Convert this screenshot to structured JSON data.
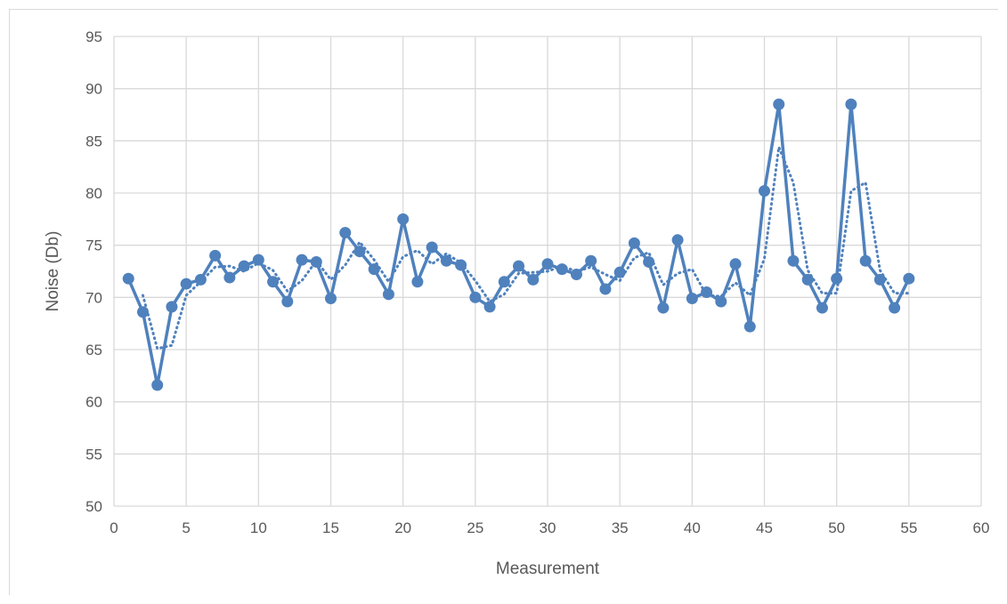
{
  "chart_data": {
    "type": "line",
    "title": "",
    "xlabel": "Measurement",
    "ylabel": "Noise (Db)",
    "xlim": [
      0,
      60
    ],
    "ylim": [
      50,
      95
    ],
    "x_ticks": [
      0,
      5,
      10,
      15,
      20,
      25,
      30,
      35,
      40,
      45,
      50,
      55,
      60
    ],
    "y_ticks": [
      50,
      55,
      60,
      65,
      70,
      75,
      80,
      85,
      90,
      95
    ],
    "grid": true,
    "legend": "none",
    "series": [
      {
        "style": "solid-with-markers",
        "color": "#4f81bd",
        "x": [
          1,
          2,
          3,
          4,
          5,
          6,
          7,
          8,
          9,
          10,
          11,
          12,
          13,
          14,
          15,
          16,
          17,
          18,
          19,
          20,
          21,
          22,
          23,
          24,
          25,
          26,
          27,
          28,
          29,
          30,
          31,
          32,
          33,
          34,
          35,
          36,
          37,
          38,
          39,
          40,
          41,
          42,
          43,
          44,
          45,
          46,
          47,
          48,
          49,
          50,
          51,
          52,
          53,
          54,
          55
        ],
        "values": [
          71.8,
          68.6,
          61.6,
          69.1,
          71.3,
          71.7,
          74.0,
          71.9,
          73.0,
          73.6,
          71.5,
          69.6,
          73.6,
          73.4,
          69.9,
          76.2,
          74.4,
          72.7,
          70.3,
          77.5,
          71.5,
          74.8,
          73.5,
          73.1,
          70.0,
          69.1,
          71.5,
          73.0,
          71.7,
          73.2,
          72.7,
          72.2,
          73.5,
          70.8,
          72.4,
          75.2,
          73.4,
          69.0,
          75.5,
          69.9,
          70.5,
          69.6,
          73.2,
          67.2,
          80.2,
          88.5,
          73.5,
          71.7,
          69.0,
          71.8,
          88.5,
          73.5,
          71.7,
          69.0,
          71.8
        ]
      },
      {
        "style": "dotted-trend",
        "color": "#4f81bd",
        "x": [
          2,
          3,
          4,
          5,
          6,
          7,
          8,
          9,
          10,
          11,
          12,
          13,
          14,
          15,
          16,
          17,
          18,
          19,
          20,
          21,
          22,
          23,
          24,
          25,
          26,
          27,
          28,
          29,
          30,
          31,
          32,
          33,
          34,
          35,
          36,
          37,
          38,
          39,
          40,
          41,
          42,
          43,
          44,
          45,
          46,
          47,
          48,
          49,
          50,
          51,
          52,
          53,
          54,
          55
        ],
        "values": [
          70.2,
          65.1,
          65.4,
          70.2,
          71.5,
          72.9,
          73.0,
          72.5,
          73.3,
          72.6,
          70.6,
          71.6,
          73.5,
          71.7,
          73.1,
          75.3,
          73.6,
          71.5,
          73.9,
          74.5,
          73.2,
          74.2,
          73.3,
          71.6,
          69.6,
          70.3,
          72.3,
          72.4,
          72.5,
          73.0,
          72.5,
          72.9,
          72.2,
          71.6,
          73.8,
          74.3,
          71.2,
          72.3,
          72.7,
          70.2,
          70.1,
          71.4,
          70.2,
          73.7,
          84.4,
          81.0,
          72.6,
          70.4,
          70.4,
          80.2,
          81.0,
          72.6,
          70.4,
          70.4
        ]
      }
    ]
  }
}
